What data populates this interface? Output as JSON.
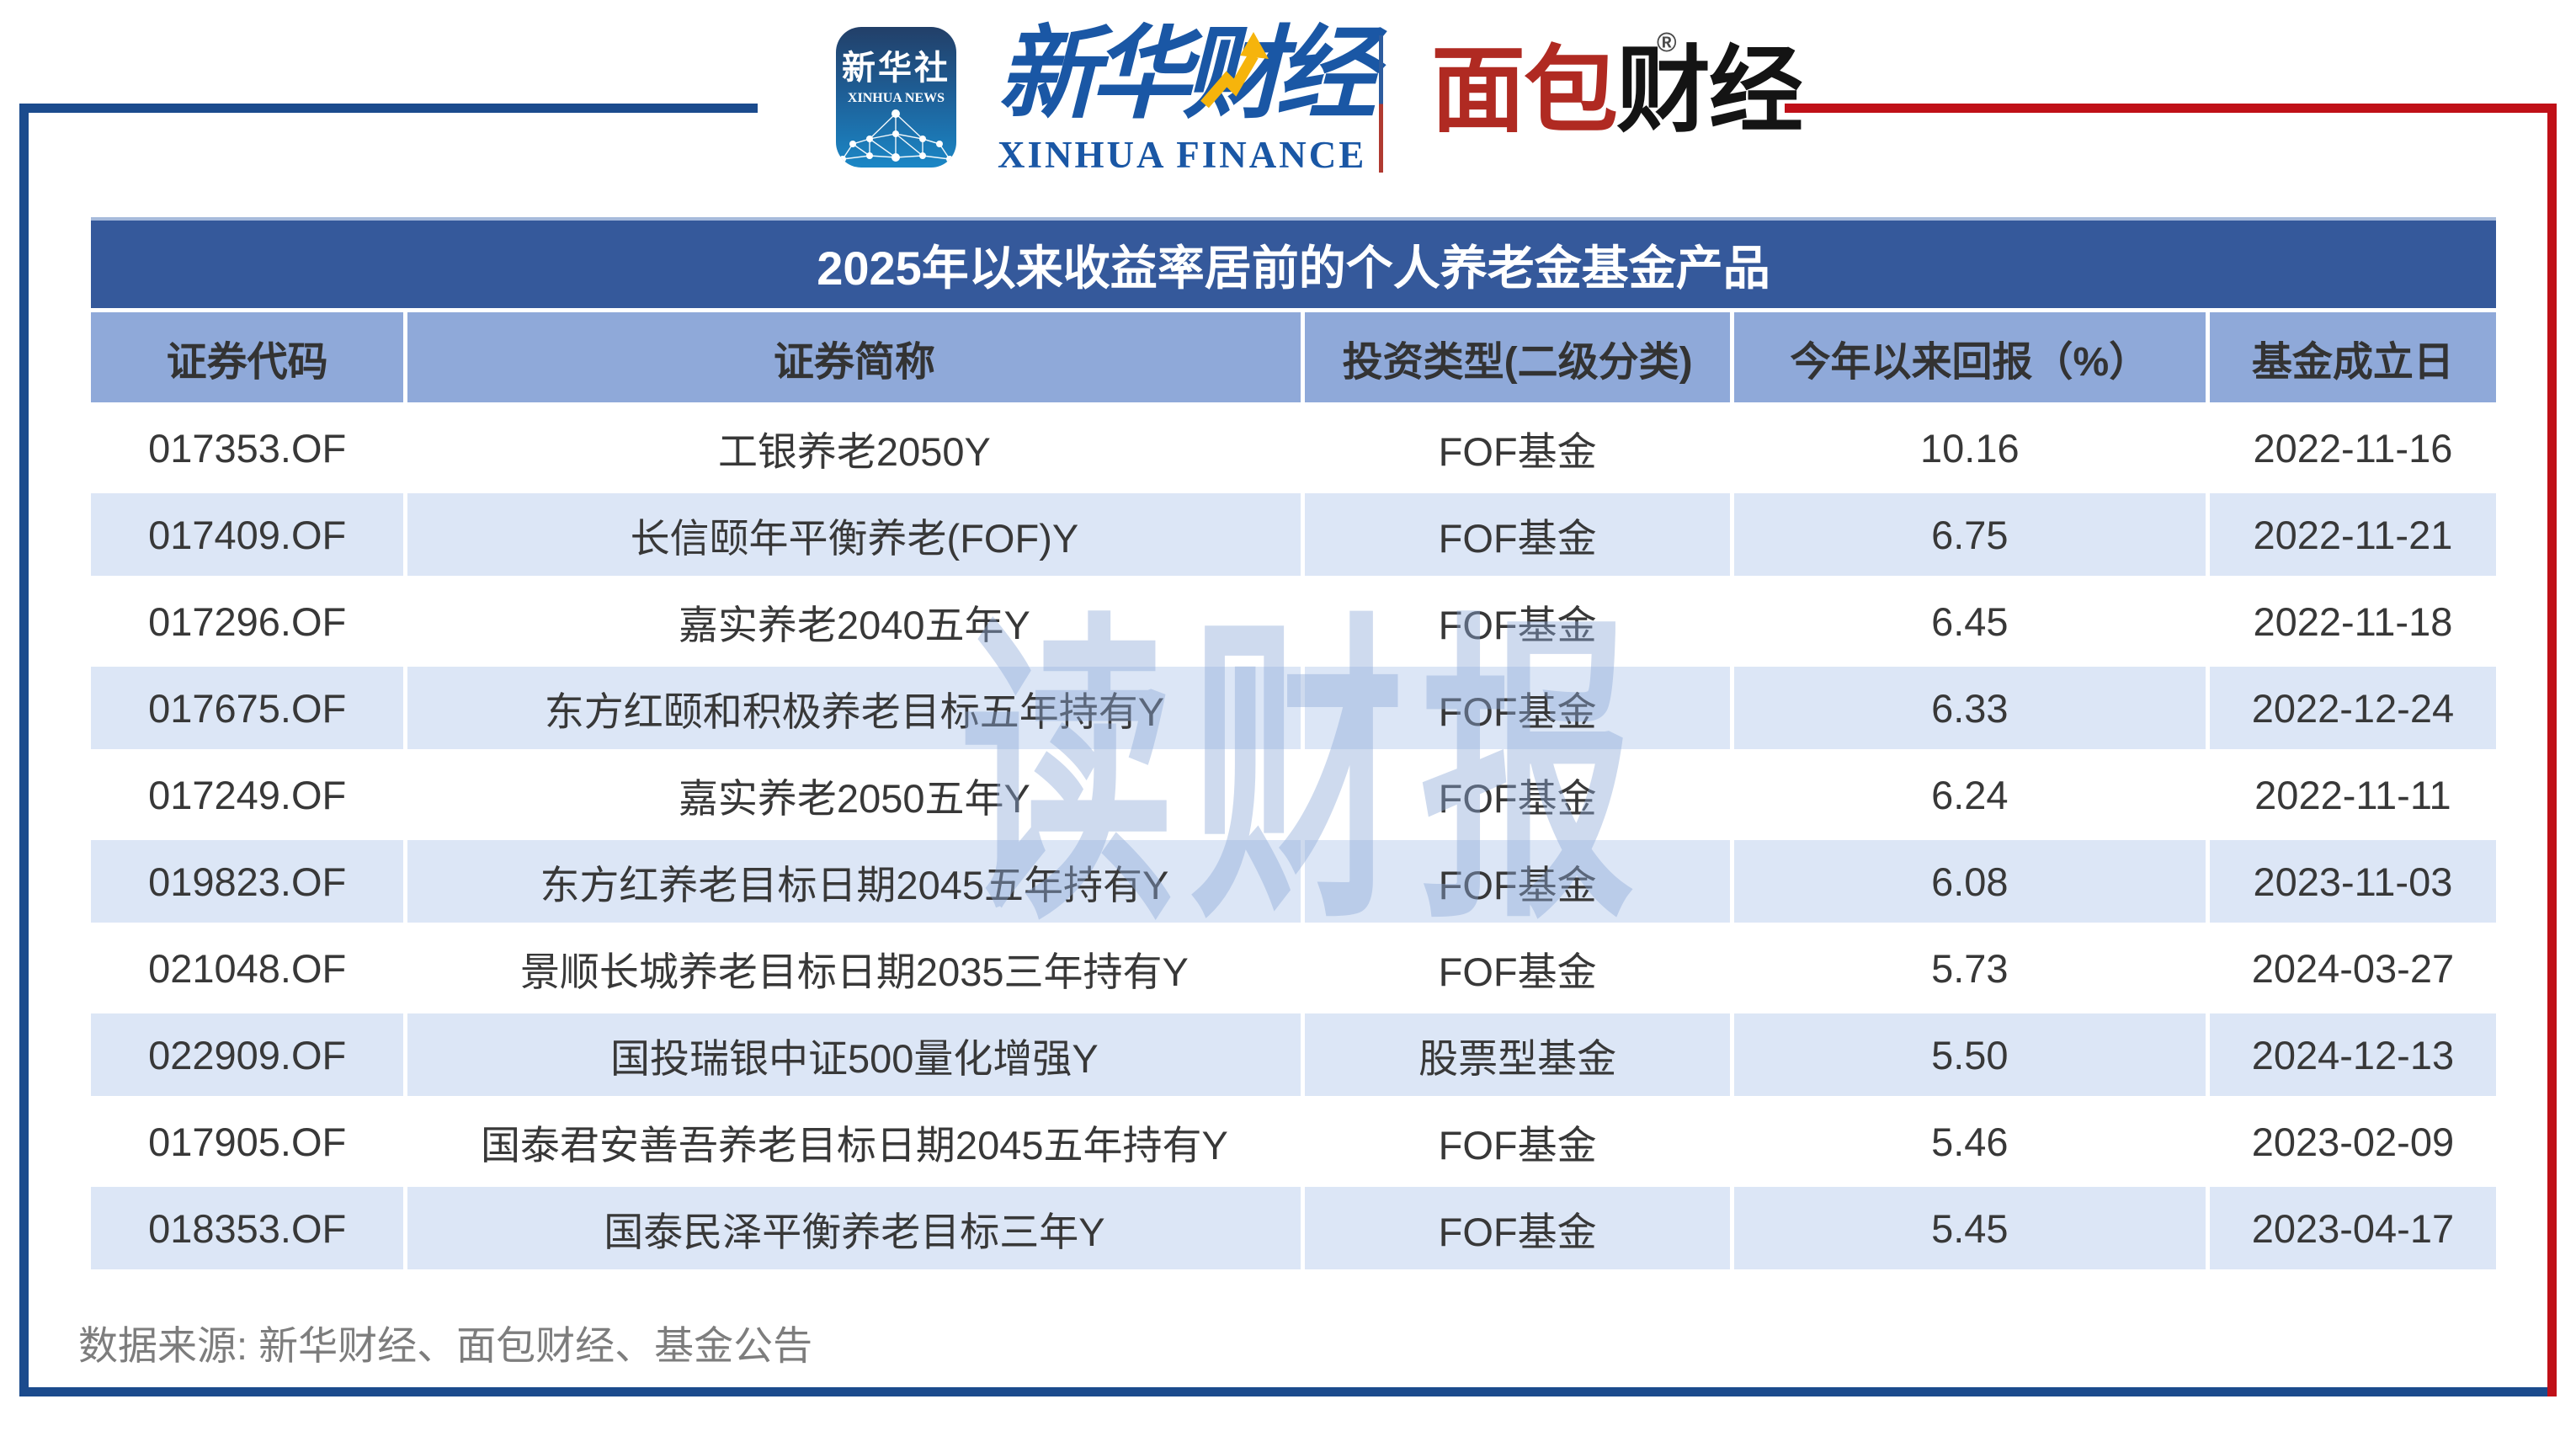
{
  "brand": {
    "icon": {
      "title": "新华社",
      "subtitle": "XINHUA NEWS"
    },
    "finance": {
      "cn": "新华财经",
      "en": "XINHUA FINANCE"
    },
    "mianbao": {
      "cn_red": "面包",
      "cn_black": "财经",
      "reg": "®"
    }
  },
  "table": {
    "title": "2025年以来收益率居前的个人养老金基金产品",
    "columns": [
      "证券代码",
      "证券简称",
      "投资类型(二级分类)",
      "今年以来回报（%）",
      "基金成立日"
    ],
    "rows": [
      {
        "code": "017353.OF",
        "name": "工银养老2050Y",
        "type": "FOF基金",
        "ret": "10.16",
        "date": "2022-11-16"
      },
      {
        "code": "017409.OF",
        "name": "长信颐年平衡养老(FOF)Y",
        "type": "FOF基金",
        "ret": "6.75",
        "date": "2022-11-21"
      },
      {
        "code": "017296.OF",
        "name": "嘉实养老2040五年Y",
        "type": "FOF基金",
        "ret": "6.45",
        "date": "2022-11-18"
      },
      {
        "code": "017675.OF",
        "name": "东方红颐和积极养老目标五年持有Y",
        "type": "FOF基金",
        "ret": "6.33",
        "date": "2022-12-24"
      },
      {
        "code": "017249.OF",
        "name": "嘉实养老2050五年Y",
        "type": "FOF基金",
        "ret": "6.24",
        "date": "2022-11-11"
      },
      {
        "code": "019823.OF",
        "name": "东方红养老目标日期2045五年持有Y",
        "type": "FOF基金",
        "ret": "6.08",
        "date": "2023-11-03"
      },
      {
        "code": "021048.OF",
        "name": "景顺长城养老目标日期2035三年持有Y",
        "type": "FOF基金",
        "ret": "5.73",
        "date": "2024-03-27"
      },
      {
        "code": "022909.OF",
        "name": "国投瑞银中证500量化增强Y",
        "type": "股票型基金",
        "ret": "5.50",
        "date": "2024-12-13"
      },
      {
        "code": "017905.OF",
        "name": "国泰君安善吾养老目标日期2045五年持有Y",
        "type": "FOF基金",
        "ret": "5.46",
        "date": "2023-02-09"
      },
      {
        "code": "018353.OF",
        "name": "国泰民泽平衡养老目标三年Y",
        "type": "FOF基金",
        "ret": "5.45",
        "date": "2023-04-17"
      }
    ]
  },
  "chart_data": {
    "type": "table",
    "title": "2025年以来收益率居前的个人养老金基金产品",
    "columns": [
      "证券代码",
      "证券简称",
      "投资类型(二级分类)",
      "今年以来回报（%）",
      "基金成立日"
    ],
    "categories": [
      "工银养老2050Y",
      "长信颐年平衡养老(FOF)Y",
      "嘉实养老2040五年Y",
      "东方红颐和积极养老目标五年持有Y",
      "嘉实养老2050五年Y",
      "东方红养老目标日期2045五年持有Y",
      "景顺长城养老目标日期2035三年持有Y",
      "国投瑞银中证500量化增强Y",
      "国泰君安善吾养老目标日期2045五年持有Y",
      "国泰民泽平衡养老目标三年Y"
    ],
    "values": [
      10.16,
      6.75,
      6.45,
      6.33,
      6.24,
      6.08,
      5.73,
      5.5,
      5.46,
      5.45
    ]
  },
  "watermark": "读财报",
  "source": "数据来源: 新华财经、面包财经、基金公告",
  "colors": {
    "title_bar": "#35599b",
    "header_row": "#8fa9d9",
    "row_alt": "#dce6f6",
    "frame_blue": "#1b4b8d",
    "frame_red": "#c01018",
    "brand_blue": "#1a57a5",
    "brand_gold": "#f6b40c",
    "brand_red": "#b02a22",
    "watermark_blue": "#8ca9d8"
  }
}
